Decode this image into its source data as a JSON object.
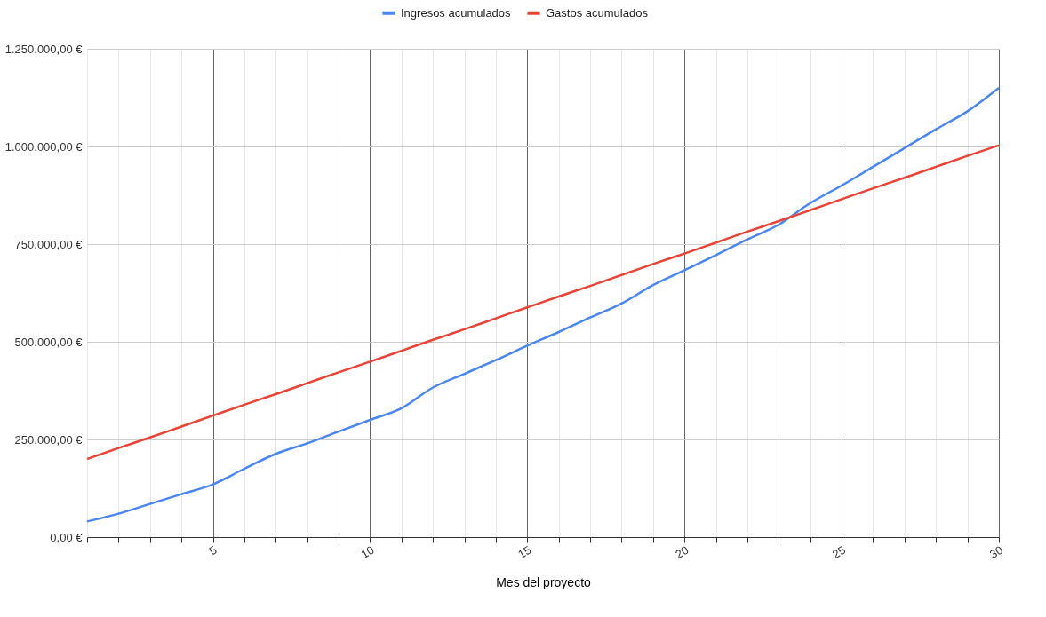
{
  "chart_data": {
    "type": "line",
    "xlabel": "Mes del proyecto",
    "x": [
      1,
      2,
      3,
      4,
      5,
      6,
      7,
      8,
      9,
      10,
      11,
      12,
      13,
      14,
      15,
      16,
      17,
      18,
      19,
      20,
      21,
      22,
      23,
      24,
      25,
      26,
      27,
      28,
      29,
      30
    ],
    "series": [
      {
        "name": "Ingresos acumulados",
        "color": "#4a86f0",
        "values": [
          40000,
          60000,
          85000,
          110000,
          135000,
          175000,
          213000,
          240000,
          270000,
          300000,
          330000,
          383000,
          418000,
          453000,
          490000,
          525000,
          562000,
          598000,
          645000,
          683000,
          722000,
          762000,
          800000,
          855000,
          900000,
          948000,
          996000,
          1044000,
          1090000,
          1150000
        ]
      },
      {
        "name": "Gastos acumulados",
        "color": "#ea4335",
        "values": [
          200000,
          228000,
          255000,
          283000,
          311000,
          339000,
          366000,
          394000,
          422000,
          449000,
          477000,
          505000,
          532000,
          560000,
          588000,
          616000,
          643000,
          671000,
          699000,
          726000,
          754000,
          782000,
          809000,
          837000,
          865000,
          893000,
          920000,
          948000,
          976000,
          1003000
        ]
      }
    ],
    "xlim": [
      1,
      30
    ],
    "xticks": [
      {
        "value": 1,
        "label": null
      },
      {
        "value": 2,
        "label": null
      },
      {
        "value": 3,
        "label": null
      },
      {
        "value": 4,
        "label": null
      },
      5,
      {
        "value": 6,
        "label": null
      },
      {
        "value": 7,
        "label": null
      },
      {
        "value": 8,
        "label": null
      },
      {
        "value": 9,
        "label": null
      },
      10,
      {
        "value": 11,
        "label": null
      },
      {
        "value": 12,
        "label": null
      },
      {
        "value": 13,
        "label": null
      },
      {
        "value": 14,
        "label": null
      },
      15,
      {
        "value": 16,
        "label": null
      },
      {
        "value": 17,
        "label": null
      },
      {
        "value": 18,
        "label": null
      },
      {
        "value": 19,
        "label": null
      },
      20,
      {
        "value": 21,
        "label": null
      },
      {
        "value": 22,
        "label": null
      },
      {
        "value": 23,
        "label": null
      },
      {
        "value": 24,
        "label": null
      },
      25,
      {
        "value": 26,
        "label": null
      },
      {
        "value": 27,
        "label": null
      },
      {
        "value": 28,
        "label": null
      },
      {
        "value": 29,
        "label": null
      },
      30
    ],
    "ylim": [
      0,
      1250000
    ],
    "yticks": [
      {
        "value": 0,
        "label": "0,00 €"
      },
      {
        "value": 250000,
        "label": "250.000,00 €"
      },
      {
        "value": 500000,
        "label": "500.000,00 €"
      },
      {
        "value": 750000,
        "label": "750.000,00 €"
      },
      {
        "value": 1000000,
        "label": "1.000.000,00 €"
      },
      {
        "value": 1250000,
        "label": "1.250.000,00 €"
      }
    ],
    "grid": true,
    "legend": "top",
    "marker": "none",
    "line_style": "solid"
  }
}
